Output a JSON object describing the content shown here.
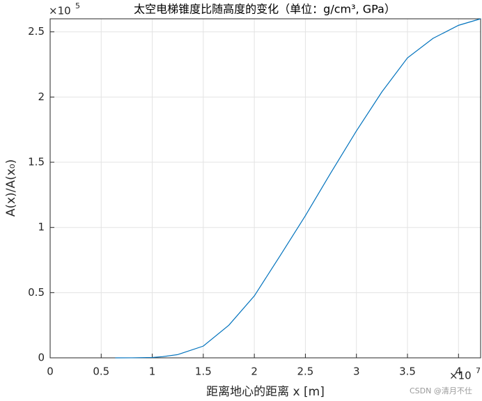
{
  "chart_data": {
    "type": "line",
    "title": "太空电梯锥度比随高度的变化（单位：g/cm³, GPa）",
    "x_label": "距离地心的距离 x [m]",
    "y_label": "A(x)/A(x₀)",
    "x_exponent": {
      "base": "×10",
      "power": "7"
    },
    "y_exponent": {
      "base": "×10",
      "power": "5"
    },
    "watermark": "CSDN @清月不仕",
    "x": [
      6378000,
      8000000,
      10000000,
      11000000,
      12500000,
      15000000,
      17500000,
      20000000,
      22500000,
      25000000,
      27500000,
      30000000,
      32500000,
      35000000,
      37500000,
      40000000,
      42164000
    ],
    "series": [
      {
        "name": "A(x)/A(x0)",
        "color": "#0072bd",
        "values": [
          1,
          30,
          300,
          900,
          2500,
          9000,
          25000,
          47500,
          78000,
          109000,
          142000,
          174000,
          204000,
          230000,
          245000,
          255000,
          260000
        ]
      }
    ],
    "xlim": [
      0,
      42164000
    ],
    "ylim": [
      0,
      260000
    ],
    "xticks": [
      0,
      {
        "value": 5000000,
        "label": "0.5"
      },
      {
        "value": 10000000,
        "label": "1"
      },
      {
        "value": 15000000,
        "label": "1.5"
      },
      {
        "value": 20000000,
        "label": "2"
      },
      {
        "value": 25000000,
        "label": "2.5"
      },
      {
        "value": 30000000,
        "label": "3"
      },
      {
        "value": 35000000,
        "label": "3.5"
      },
      {
        "value": 40000000,
        "label": "4"
      }
    ],
    "yticks": [
      0,
      {
        "value": 50000,
        "label": "0.5"
      },
      {
        "value": 100000,
        "label": "1"
      },
      {
        "value": 150000,
        "label": "1.5"
      },
      {
        "value": 200000,
        "label": "2"
      },
      {
        "value": 250000,
        "label": "2.5"
      }
    ],
    "grid": true
  }
}
